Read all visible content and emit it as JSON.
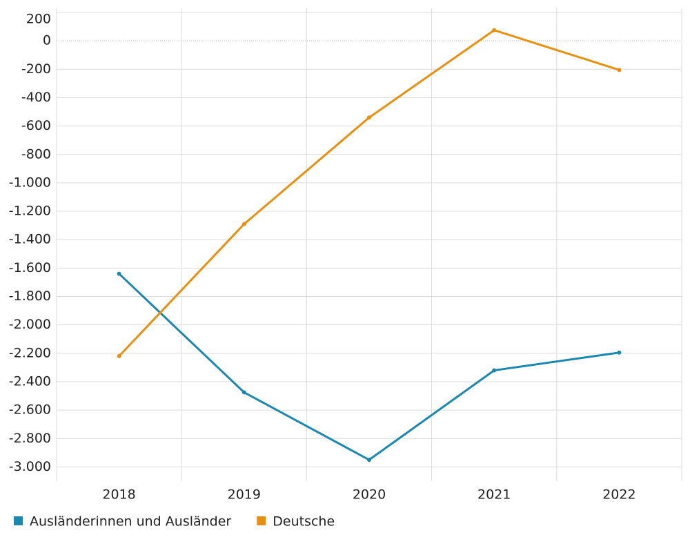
{
  "chart_data": {
    "type": "line",
    "categories": [
      "2018",
      "2019",
      "2020",
      "2021",
      "2022"
    ],
    "series": [
      {
        "name": "Ausländerinnen und Ausländer",
        "color": "#1a87b0",
        "values": [
          -1640,
          -2475,
          -2950,
          -2320,
          -2195
        ]
      },
      {
        "name": "Deutsche",
        "color": "#e8900e",
        "values": [
          -2220,
          -1290,
          -540,
          75,
          -205
        ]
      }
    ],
    "ylim": [
      -3100,
      200
    ],
    "yticks": [
      200,
      0,
      -200,
      -400,
      -600,
      -800,
      {
        "value": -1000,
        "label": "-1.000"
      },
      {
        "value": -1200,
        "label": "-1.200"
      },
      {
        "value": -1400,
        "label": "-1.400"
      },
      {
        "value": -1600,
        "label": "-1.600"
      },
      {
        "value": -1800,
        "label": "-1.800"
      },
      {
        "value": -2000,
        "label": "-2.000"
      },
      {
        "value": -2200,
        "label": "-2.200"
      },
      {
        "value": -2400,
        "label": "-2.400"
      },
      {
        "value": -2600,
        "label": "-2.600"
      },
      {
        "value": -2800,
        "label": "-2.800"
      },
      {
        "value": -3000,
        "label": "-3.000"
      }
    ],
    "grid": true
  }
}
